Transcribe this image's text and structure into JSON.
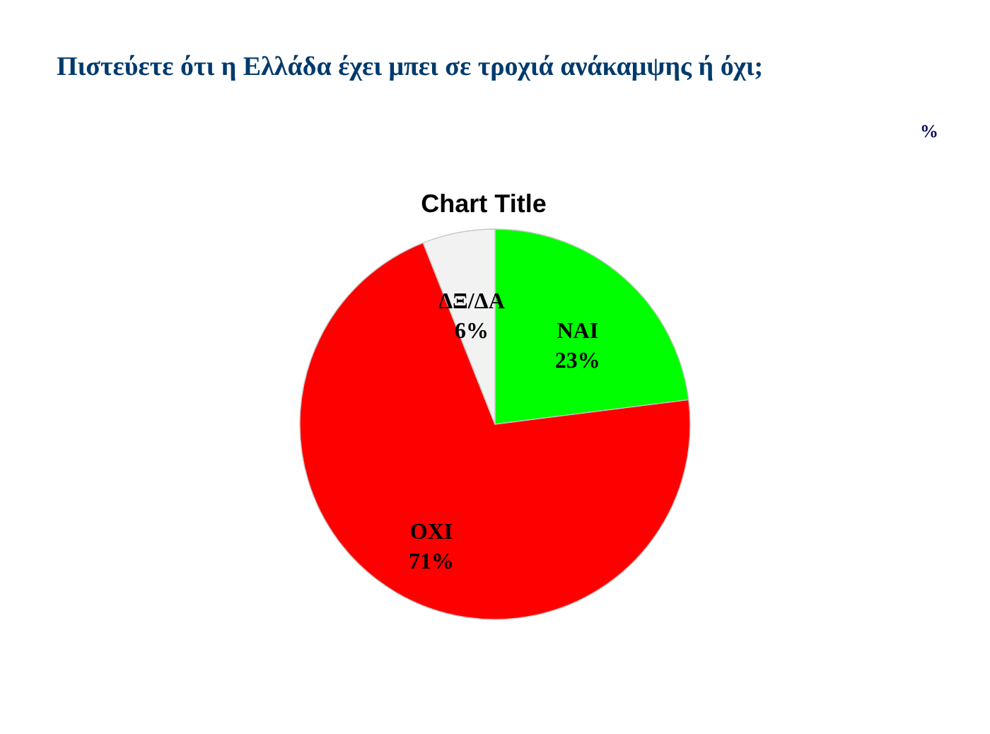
{
  "chart_data": {
    "type": "pie",
    "title": "Πιστεύετε ότι η Ελλάδα έχει μπει σε τροχιά ανάκαμψης ή όχι;",
    "subtitle": "Chart Title",
    "annotations": [
      "%"
    ],
    "categories": [
      "ΝΑΙ",
      "ΟΧΙ",
      "ΔΞ/ΔΑ"
    ],
    "values": [
      23,
      71,
      6
    ],
    "value_labels": [
      "23%",
      "71%",
      "6%"
    ],
    "colors": [
      "#00ff00",
      "#ff0000",
      "#f2f2f2"
    ]
  }
}
